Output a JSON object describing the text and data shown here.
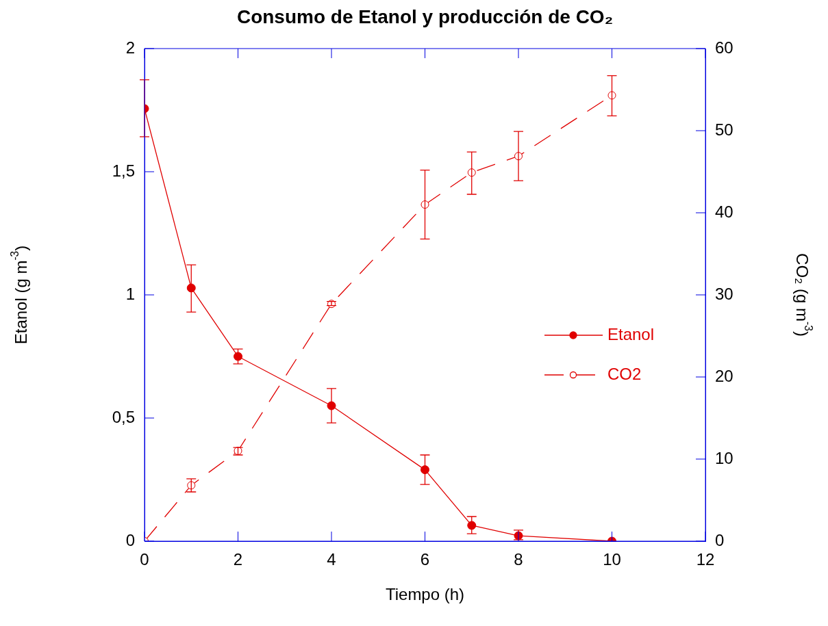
{
  "chart_data": {
    "type": "line",
    "title": "Consumo de Etanol y producción de CO₂",
    "xlabel": "Tiempo (h)",
    "ylabel": "Etanol (g m$^{-3}$)",
    "y2label": "CO₂ (g m$^{-3}$)",
    "x": [
      0,
      1,
      2,
      4,
      6,
      7,
      8,
      10
    ],
    "series": [
      {
        "name": "Etanol",
        "color": "#e00000",
        "marker": "circle",
        "line_style": "solid",
        "values": [
          1.756,
          1.028,
          0.75,
          0.55,
          0.29,
          0.064,
          0.022,
          0
        ],
        "errors": [
          [
            1.642,
            1.873
          ],
          [
            0.93,
            1.122
          ],
          [
            0.72,
            0.78
          ],
          [
            0.48,
            0.62
          ],
          [
            0.23,
            0.35
          ],
          [
            0.03,
            0.1
          ],
          [
            0.006,
            0.045
          ],
          null
        ]
      },
      {
        "name": "CO2",
        "color": "#e00000",
        "marker": "circle",
        "line_style": "dashed",
        "axis": "y2",
        "values": [
          0,
          6.8,
          11,
          28.9,
          41,
          44.9,
          46.9,
          54.3
        ],
        "errors": [
          null,
          [
            6,
            7.6
          ],
          [
            10.5,
            11.4
          ],
          [
            28.7,
            29.2
          ],
          [
            36.8,
            45.2
          ],
          [
            42.25,
            47.4
          ],
          [
            43.9,
            49.9
          ],
          [
            51.8,
            56.7
          ]
        ]
      }
    ],
    "xlim": [
      0,
      12
    ],
    "xticks": [
      0,
      2,
      4,
      6,
      8,
      10,
      12
    ],
    "ylim": [
      0,
      2
    ],
    "yticks": [
      0,
      {
        "value": 0.5,
        "label": "0,5"
      },
      1,
      {
        "value": 1.5,
        "label": "1,5"
      },
      2
    ],
    "y2lim": [
      0,
      60
    ],
    "y2ticks": [
      0,
      10,
      20,
      30,
      40,
      50,
      60
    ],
    "grid": false,
    "legend": "right"
  }
}
